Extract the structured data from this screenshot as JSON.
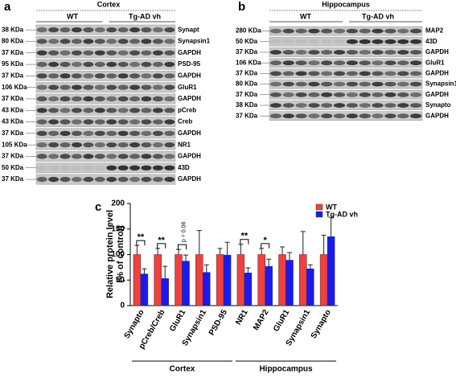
{
  "panel_a": {
    "label": "a",
    "region": "Cortex",
    "groups": [
      "WT",
      "Tg-AD vh"
    ],
    "rows": [
      [
        "38 KDa",
        "Synapt"
      ],
      [
        "80 KDa",
        "Synapsin1"
      ],
      [
        "37 KDa",
        "GAPDH"
      ],
      [
        "95 KDa",
        "PSD-95"
      ],
      [
        "37 KDa",
        "GAPDH"
      ],
      [
        "106 KDa",
        "GluR1"
      ],
      [
        "37 KDa",
        "GAPDH"
      ],
      [
        "43 KDa",
        "pCreb"
      ],
      [
        "43 KDa",
        "Creb"
      ],
      [
        "37 KDa",
        "GAPDH"
      ],
      [
        "105 KDa",
        "NR1"
      ],
      [
        "37 KDa",
        "GAPDH"
      ],
      [
        "50 KDa",
        "43D"
      ],
      [
        "37 KDa",
        "GAPDH"
      ]
    ]
  },
  "panel_b": {
    "label": "b",
    "region": "Hippocampus",
    "groups": [
      "WT",
      "Tg-AD vh"
    ],
    "rows": [
      [
        "280 KDa",
        "MAP2"
      ],
      [
        "50 KDa",
        "43D"
      ],
      [
        "37 KDa",
        "GAPDH"
      ],
      [
        "106 KDa",
        "GluR1"
      ],
      [
        "37 KDa",
        "GAPDH"
      ],
      [
        "80 KDa",
        "Synapsin1"
      ],
      [
        "37 KDa",
        "GAPDH"
      ],
      [
        "38 KDa",
        "Synapto"
      ],
      [
        "37 KDa",
        "GAPDH"
      ]
    ]
  },
  "chart_data": {
    "type": "bar",
    "panel_label": "c",
    "y_label": [
      "Relative protein level",
      "(% of control)"
    ],
    "categories": [
      "Synapto",
      "pCreb/Creb",
      "GluR1",
      "Synapsin1",
      "PSD-95",
      "NR1",
      "MAP2",
      "GluR1",
      "Synapsin1",
      "Synapto"
    ],
    "series": [
      {
        "name": "WT",
        "color": "#f04040",
        "values": [
          100,
          100,
          100,
          100,
          100,
          100,
          100,
          100,
          100,
          100
        ],
        "errors": [
          18,
          12,
          10,
          47,
          12,
          20,
          12,
          15,
          45,
          38
        ]
      },
      {
        "name": "Tg-AD vh",
        "color": "#1a1aee",
        "values": [
          62,
          53,
          87,
          65,
          99,
          64,
          77,
          89,
          72,
          135
        ],
        "errors": [
          10,
          24,
          12,
          15,
          25,
          10,
          14,
          15,
          8,
          38
        ]
      }
    ],
    "ylim": [
      0,
      200
    ],
    "yticks": [
      0,
      50,
      100,
      150,
      200
    ],
    "annotations": [
      "**",
      "**",
      "p = 0.06",
      "**",
      "*"
    ],
    "groups": [
      "Cortex",
      "Hippocampus"
    ]
  }
}
